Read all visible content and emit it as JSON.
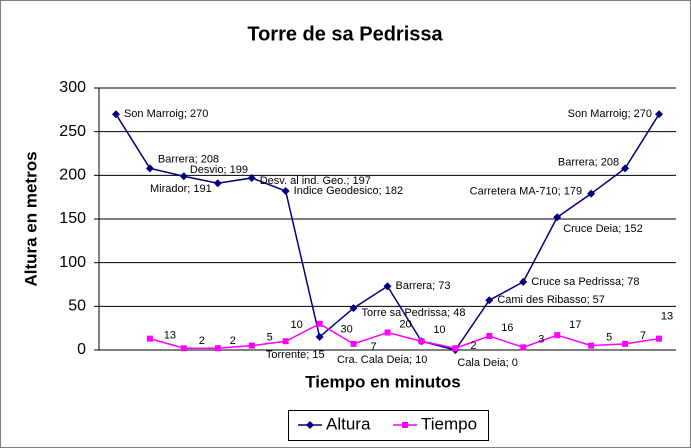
{
  "chart_data": {
    "type": "line",
    "title": "Torre de sa Pedrissa",
    "x_label": "Tiempo en minutos",
    "y_label": "Altura en metros",
    "ylim": [
      0,
      300
    ],
    "yticks": [
      0,
      50,
      100,
      150,
      200,
      250,
      300
    ],
    "grid": true,
    "legend": "bottom",
    "series": [
      {
        "name": "Altura",
        "color": "#000080",
        "values": [
          270,
          208,
          199,
          191,
          197,
          182,
          15,
          48,
          73,
          10,
          0,
          57,
          78,
          152,
          179,
          208,
          270
        ],
        "value_labels": [
          "Son Marroig; 270",
          "Barrera; 208",
          "Desvio; 199",
          "Mirador; 191",
          "Desv. al ind. Geo.; 197",
          "Indice Geodesico; 182",
          "Torrente; 15",
          "Torre sa Pedrissa; 48",
          "Barrera; 73",
          "Cra. Cala Deia; 10",
          "Cala Deia; 0",
          "Cami des Ribasso; 57",
          "Cruce sa Pedrissa; 78",
          "Cruce Deia; 152",
          "Carretera MA-710; 179",
          "Barrera; 208",
          "Son Marroig; 270"
        ]
      },
      {
        "name": "Tiempo",
        "color": "#ff00ff",
        "values": [
          null,
          13,
          2,
          2,
          5,
          10,
          30,
          7,
          20,
          10,
          2,
          16,
          3,
          17,
          5,
          7,
          13
        ]
      }
    ]
  }
}
